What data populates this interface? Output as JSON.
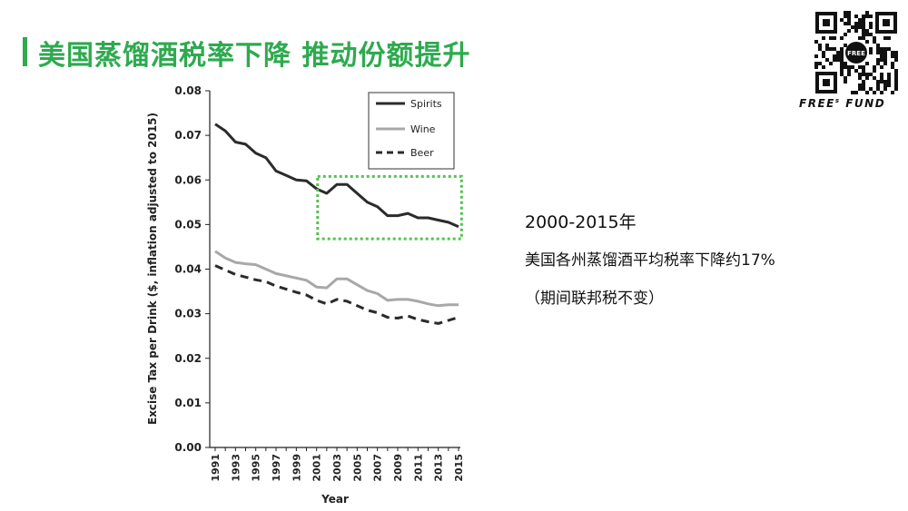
{
  "header": {
    "title": "美国蒸馏酒税率下降 推动份额提升",
    "brand": "FREE",
    "brand_super": "s",
    "brand_suffix": "FUND",
    "qr_center_text": "FREE",
    "accent_color": "#2eaa4f"
  },
  "notes": {
    "line1": "2000-2015年",
    "line2": "美国各州蒸馏酒平均税率下降约17%",
    "line3": "（期间联邦税不变）"
  },
  "chart_data": {
    "type": "line",
    "xlabel": "Year",
    "ylabel": "Excise Tax per Drink ($, inflation adjusted to 2015)",
    "xlim": [
      1991,
      2015
    ],
    "ylim": [
      0,
      0.08
    ],
    "x_ticks": [
      "1991",
      "1993",
      "1995",
      "1997",
      "1999",
      "2001",
      "2003",
      "2005",
      "2007",
      "2009",
      "2011",
      "2013",
      "2015"
    ],
    "y_ticks": [
      "0.00",
      "0.01",
      "0.02",
      "0.03",
      "0.04",
      "0.05",
      "0.06",
      "0.07",
      "0.08"
    ],
    "x": [
      1991,
      1992,
      1993,
      1994,
      1995,
      1996,
      1997,
      1998,
      1999,
      2000,
      2001,
      2002,
      2003,
      2004,
      2005,
      2006,
      2007,
      2008,
      2009,
      2010,
      2011,
      2012,
      2013,
      2014,
      2015
    ],
    "series": [
      {
        "name": "Spirits",
        "style": "solid",
        "color": "#2b2b2b",
        "values": [
          0.0725,
          0.071,
          0.0685,
          0.068,
          0.066,
          0.065,
          0.062,
          0.061,
          0.06,
          0.0598,
          0.058,
          0.057,
          0.059,
          0.059,
          0.057,
          0.055,
          0.054,
          0.052,
          0.052,
          0.0525,
          0.0515,
          0.0515,
          0.051,
          0.0505,
          0.0495
        ]
      },
      {
        "name": "Wine",
        "style": "solid",
        "color": "#a8a8a8",
        "values": [
          0.044,
          0.0425,
          0.0415,
          0.0412,
          0.041,
          0.04,
          0.039,
          0.0385,
          0.038,
          0.0375,
          0.036,
          0.0358,
          0.0378,
          0.0378,
          0.0365,
          0.0352,
          0.0345,
          0.033,
          0.0332,
          0.0332,
          0.0328,
          0.0322,
          0.0318,
          0.032,
          0.032
        ]
      },
      {
        "name": "Beer",
        "style": "dashed",
        "color": "#2b2b2b",
        "values": [
          0.0408,
          0.0398,
          0.0388,
          0.0382,
          0.0376,
          0.0372,
          0.0362,
          0.0355,
          0.0348,
          0.0342,
          0.033,
          0.0322,
          0.0332,
          0.0328,
          0.0318,
          0.0308,
          0.0302,
          0.0292,
          0.029,
          0.0295,
          0.0287,
          0.0282,
          0.0278,
          0.0285,
          0.0292
        ]
      }
    ],
    "highlight_box": {
      "x_range": [
        2001.1,
        2015.3
      ],
      "y_range": [
        0.0468,
        0.0608
      ],
      "color": "#55c24f",
      "style": "dotted"
    },
    "legend": {
      "position": "top-right"
    },
    "grid": false
  }
}
